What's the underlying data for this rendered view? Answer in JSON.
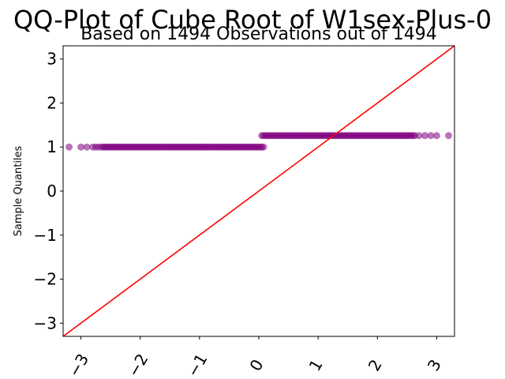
{
  "chart_data": {
    "type": "scatter",
    "title": "QQ-Plot of Cube Root of W1sex-Plus-0",
    "subtitle": "Based on 1494 Observations out of 1494",
    "xlabel": "",
    "ylabel": "Sample Quantiles",
    "xlim": [
      -3.3,
      3.3
    ],
    "ylim": [
      -3.3,
      3.3
    ],
    "xticks": [
      -3,
      -2,
      -1,
      0,
      1,
      2,
      3
    ],
    "yticks": [
      -3,
      -2,
      -1,
      0,
      1,
      2,
      3
    ],
    "xtick_labels": [
      "−3",
      "−2",
      "−1",
      "0",
      "1",
      "2",
      "3"
    ],
    "ytick_labels": [
      "−3",
      "−2",
      "−1",
      "0",
      "1",
      "2",
      "3"
    ],
    "grid": false,
    "point_color": "#800080",
    "line_color": "#ff0000",
    "reference_line": {
      "x": [
        -3.3,
        3.3
      ],
      "y": [
        -3.3,
        3.3
      ]
    },
    "groups": [
      {
        "y": 1.0,
        "x_from": -3.2,
        "x_to": 0.1,
        "isolated_x": [
          -3.2,
          -3.0,
          -2.9,
          -2.8,
          -2.75,
          -2.7
        ]
      },
      {
        "y": 1.26,
        "x_from": 0.05,
        "x_to": 3.2,
        "isolated_x": [
          2.7,
          2.8,
          2.9,
          3.0,
          3.2
        ]
      }
    ]
  }
}
